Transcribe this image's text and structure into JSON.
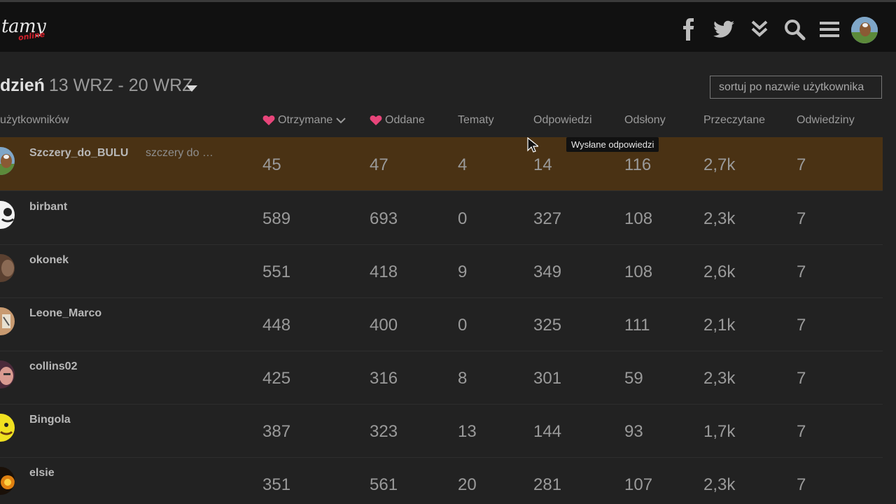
{
  "header": {
    "logo_main": "tamy",
    "logo_sub": "online",
    "icons": [
      "facebook-icon",
      "twitter-icon",
      "double-chevron-down-icon",
      "search-icon",
      "hamburger-menu-icon",
      "user-avatar"
    ]
  },
  "period": {
    "label": "dzień",
    "range": "13 WRZ - 20 WRZ"
  },
  "search": {
    "placeholder": "sortuj po nazwie użytkownika"
  },
  "columns": {
    "users": "użytkowników",
    "received": "Otrzymane",
    "given": "Oddane",
    "topics": "Tematy",
    "replies": "Odpowiedzi",
    "views": "Odsłony",
    "read": "Przeczytane",
    "visits": "Odwiedziny"
  },
  "tooltip": "Wysłane odpowiedzi",
  "rows": [
    {
      "username": "Szczery_do_BULU",
      "realname": "szczery do …",
      "received": "45",
      "given": "47",
      "topics": "4",
      "replies": "14",
      "views": "116",
      "read": "2,7k",
      "visits": "7"
    },
    {
      "username": "birbant",
      "realname": "",
      "received": "589",
      "given": "693",
      "topics": "0",
      "replies": "327",
      "views": "108",
      "read": "2,3k",
      "visits": "7"
    },
    {
      "username": "okonek",
      "realname": "",
      "received": "551",
      "given": "418",
      "topics": "9",
      "replies": "349",
      "views": "108",
      "read": "2,6k",
      "visits": "7"
    },
    {
      "username": "Leone_Marco",
      "realname": "",
      "received": "448",
      "given": "400",
      "topics": "0",
      "replies": "325",
      "views": "111",
      "read": "2,1k",
      "visits": "7"
    },
    {
      "username": "collins02",
      "realname": "",
      "received": "425",
      "given": "316",
      "topics": "8",
      "replies": "301",
      "views": "59",
      "read": "2,3k",
      "visits": "7"
    },
    {
      "username": "Bingola",
      "realname": "",
      "received": "387",
      "given": "323",
      "topics": "13",
      "replies": "144",
      "views": "93",
      "read": "1,7k",
      "visits": "7"
    },
    {
      "username": "elsie",
      "realname": "",
      "received": "351",
      "given": "561",
      "topics": "20",
      "replies": "281",
      "views": "107",
      "read": "2,3k",
      "visits": "7"
    }
  ],
  "colors": {
    "highlight_row": "#4a3214",
    "heart": "#e8457a",
    "background": "#222222",
    "header_bg": "#111111"
  }
}
